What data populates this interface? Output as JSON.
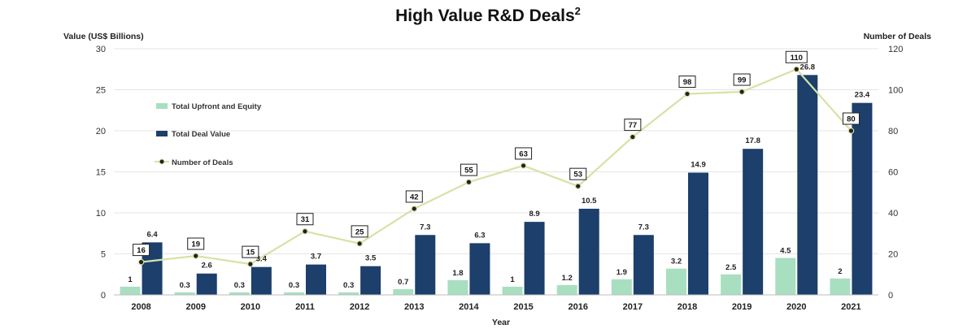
{
  "colors": {
    "upfront": "#a8dfc0",
    "deal_value": "#1c3f6b",
    "line": "#d7e2a6",
    "marker": "#222222",
    "grid": "#e4e4e4"
  },
  "chart_data": {
    "type": "bar",
    "title": "High Value R&D Deals",
    "title_superscript": "2",
    "xlabel": "Year",
    "ylabel": "Value (US$ Billions)",
    "y2label": "Number of Deals",
    "ylim": [
      0,
      30
    ],
    "y2lim": [
      0,
      120
    ],
    "yticks": [
      0,
      5,
      10,
      15,
      20,
      25,
      30
    ],
    "y2ticks": [
      0,
      20,
      40,
      60,
      80,
      100,
      120
    ],
    "grid": true,
    "legend_position": "left",
    "categories": [
      "2008",
      "2009",
      "2010",
      "2011",
      "2012",
      "2013",
      "2014",
      "2015",
      "2016",
      "2017",
      "2018",
      "2019",
      "2020",
      "2021"
    ],
    "series": [
      {
        "name": "Total Upfront and Equity",
        "type": "bar",
        "axis": "left",
        "values": [
          1,
          0.3,
          0.3,
          0.3,
          0.3,
          0.7,
          1.8,
          1,
          1.2,
          1.9,
          3.2,
          2.5,
          4.5,
          2
        ]
      },
      {
        "name": "Total Deal Value",
        "type": "bar",
        "axis": "left",
        "values": [
          6.4,
          2.6,
          3.4,
          3.7,
          3.5,
          7.3,
          6.3,
          8.9,
          10.5,
          7.3,
          14.9,
          17.8,
          26.8,
          23.4
        ]
      },
      {
        "name": "Number of Deals",
        "type": "line",
        "axis": "right",
        "values": [
          16,
          19,
          15,
          31,
          25,
          42,
          55,
          63,
          53,
          77,
          98,
          99,
          110,
          80
        ]
      }
    ]
  }
}
